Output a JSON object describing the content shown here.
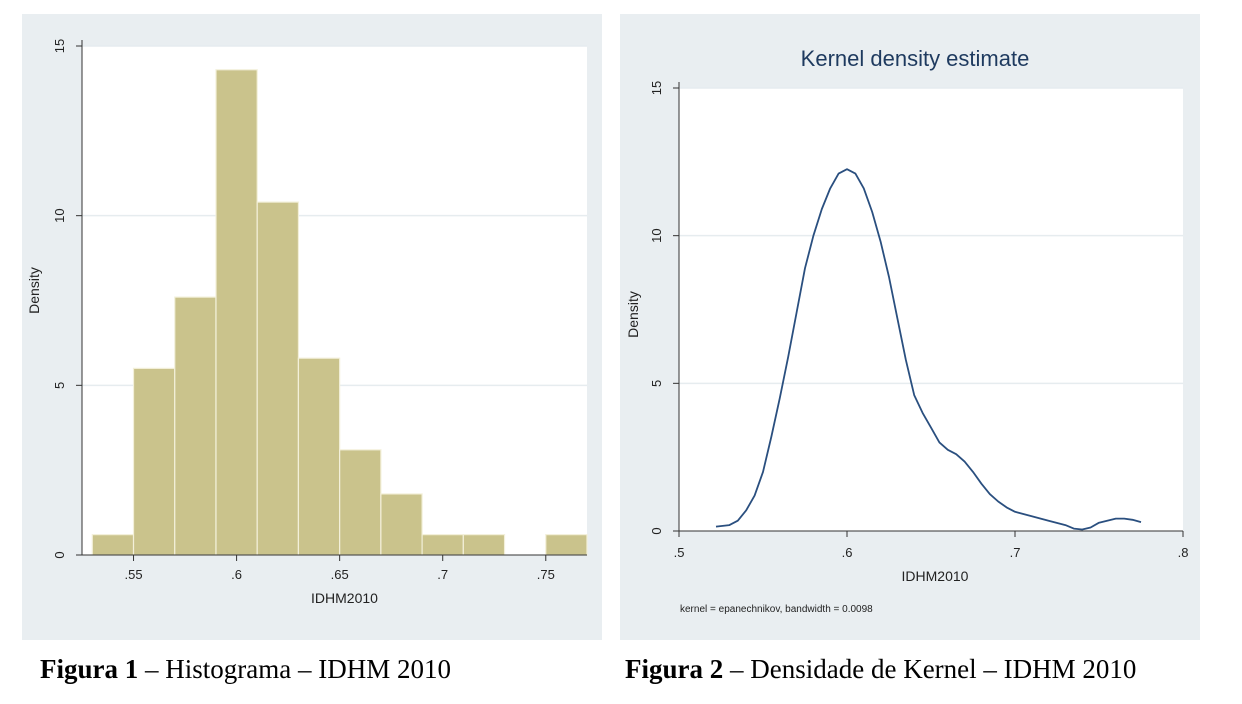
{
  "chart_data": [
    {
      "type": "bar",
      "title": "",
      "xlabel": "IDHM2010",
      "ylabel": "Density",
      "xlim": [
        0.525,
        0.77
      ],
      "ylim": [
        0,
        15
      ],
      "xticks": [
        0.55,
        0.6,
        0.65,
        0.7,
        0.75
      ],
      "xtick_labels": [
        ".55",
        ".6",
        ".65",
        ".7",
        ".75"
      ],
      "yticks": [
        0,
        5,
        10,
        15
      ],
      "ytick_labels": [
        "0",
        "5",
        "10",
        "15"
      ],
      "grid": true,
      "bar_color": "#cac38c",
      "bins": [
        {
          "x0": 0.53,
          "x1": 0.55,
          "value": 0.6
        },
        {
          "x0": 0.55,
          "x1": 0.57,
          "value": 5.5
        },
        {
          "x0": 0.57,
          "x1": 0.59,
          "value": 7.6
        },
        {
          "x0": 0.59,
          "x1": 0.61,
          "value": 14.3
        },
        {
          "x0": 0.61,
          "x1": 0.63,
          "value": 10.4
        },
        {
          "x0": 0.63,
          "x1": 0.65,
          "value": 5.8
        },
        {
          "x0": 0.65,
          "x1": 0.67,
          "value": 3.1
        },
        {
          "x0": 0.67,
          "x1": 0.69,
          "value": 1.8
        },
        {
          "x0": 0.69,
          "x1": 0.71,
          "value": 0.6
        },
        {
          "x0": 0.71,
          "x1": 0.73,
          "value": 0.6
        },
        {
          "x0": 0.73,
          "x1": 0.75,
          "value": 0.0
        },
        {
          "x0": 0.75,
          "x1": 0.77,
          "value": 0.6
        }
      ]
    },
    {
      "type": "line",
      "title": "Kernel density estimate",
      "xlabel": "IDHM2010",
      "ylabel": "Density",
      "note": "kernel = epanechnikov, bandwidth = 0.0098",
      "xlim": [
        0.5,
        0.8
      ],
      "ylim": [
        0,
        15
      ],
      "xticks": [
        0.5,
        0.6,
        0.7,
        0.8
      ],
      "xtick_labels": [
        ".5",
        ".6",
        ".7",
        ".8"
      ],
      "yticks": [
        0,
        5,
        10,
        15
      ],
      "ytick_labels": [
        "0",
        "5",
        "10",
        "15"
      ],
      "grid": true,
      "line_color": "#2a4f7f",
      "series": [
        {
          "x": [
            0.522,
            0.53,
            0.535,
            0.54,
            0.545,
            0.55,
            0.555,
            0.56,
            0.565,
            0.57,
            0.575,
            0.58,
            0.585,
            0.59,
            0.595,
            0.6,
            0.605,
            0.61,
            0.615,
            0.62,
            0.625,
            0.63,
            0.635,
            0.64,
            0.645,
            0.65,
            0.655,
            0.66,
            0.665,
            0.67,
            0.675,
            0.68,
            0.685,
            0.69,
            0.695,
            0.7,
            0.71,
            0.72,
            0.73,
            0.735,
            0.74,
            0.745,
            0.75,
            0.76,
            0.765,
            0.77,
            0.775
          ],
          "y": [
            0.15,
            0.2,
            0.35,
            0.7,
            1.2,
            2.0,
            3.2,
            4.5,
            5.9,
            7.4,
            8.9,
            10.0,
            10.9,
            11.6,
            12.1,
            12.25,
            12.1,
            11.6,
            10.8,
            9.8,
            8.6,
            7.2,
            5.8,
            4.6,
            4.0,
            3.5,
            3.0,
            2.75,
            2.6,
            2.35,
            2.0,
            1.6,
            1.25,
            1.0,
            0.8,
            0.65,
            0.5,
            0.35,
            0.2,
            0.08,
            0.05,
            0.12,
            0.28,
            0.42,
            0.42,
            0.38,
            0.3
          ]
        }
      ]
    }
  ],
  "captions": {
    "fig1_bold": "Figura 1",
    "fig1_text": " – Histograma – IDHM 2010",
    "fig2_bold": "Figura 2",
    "fig2_text": " – Densidade de Kernel – IDHM 2010"
  }
}
